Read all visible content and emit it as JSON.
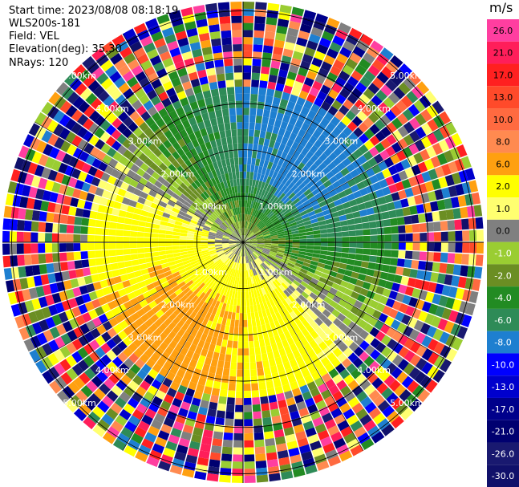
{
  "header": {
    "start_time": "Start time: 2023/08/08 08:18:19",
    "instrument": "WLS200s-181",
    "field": "Field: VEL",
    "elevation": "Elevation(deg): 35.30",
    "nrays": "NRays: 120"
  },
  "colorbar": {
    "unit": "m/s",
    "entries": [
      {
        "label": "26.0",
        "color": "#ff3ea0"
      },
      {
        "label": "21.0",
        "color": "#ff1e5a"
      },
      {
        "label": "17.0",
        "color": "#ff2020"
      },
      {
        "label": "13.0",
        "color": "#ff4a2a"
      },
      {
        "label": "10.0",
        "color": "#ff6a40"
      },
      {
        "label": "8.0",
        "color": "#ff8a50"
      },
      {
        "label": "6.0",
        "color": "#ffa010"
      },
      {
        "label": "2.0",
        "color": "#ffff00"
      },
      {
        "label": "1.0",
        "color": "#ffff70"
      },
      {
        "label": "0.0",
        "color": "#808080"
      },
      {
        "label": "-1.0",
        "color": "#9acd32"
      },
      {
        "label": "-2.0",
        "color": "#6b8e23"
      },
      {
        "label": "-4.0",
        "color": "#228b22"
      },
      {
        "label": "-6.0",
        "color": "#2e8b57"
      },
      {
        "label": "-8.0",
        "color": "#1e7fd0"
      },
      {
        "label": "-10.0",
        "color": "#0000ff"
      },
      {
        "label": "-13.0",
        "color": "#0000cd"
      },
      {
        "label": "-17.0",
        "color": "#00008b"
      },
      {
        "label": "-21.0",
        "color": "#000070"
      },
      {
        "label": "-26.0",
        "color": "#191970"
      },
      {
        "label": "-30.0",
        "color": "#10106a"
      }
    ]
  },
  "chart_data": {
    "type": "heatmap",
    "title": "",
    "range_rings_km": [
      1.0,
      2.0,
      3.0,
      4.0,
      5.0
    ],
    "ring_labels": [
      "1.00km",
      "2.00km",
      "3.00km",
      "4.00km",
      "5.00km"
    ],
    "n_rays": 120,
    "elevation_deg": 35.3,
    "field": "VEL",
    "units": "m/s",
    "grid": true
  }
}
